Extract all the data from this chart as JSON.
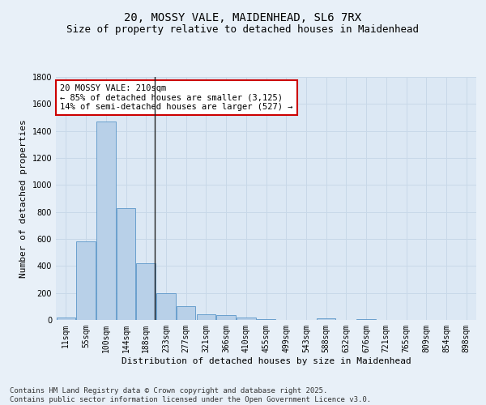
{
  "title_line1": "20, MOSSY VALE, MAIDENHEAD, SL6 7RX",
  "title_line2": "Size of property relative to detached houses in Maidenhead",
  "xlabel": "Distribution of detached houses by size in Maidenhead",
  "ylabel": "Number of detached properties",
  "categories": [
    "11sqm",
    "55sqm",
    "100sqm",
    "144sqm",
    "188sqm",
    "233sqm",
    "277sqm",
    "321sqm",
    "366sqm",
    "410sqm",
    "455sqm",
    "499sqm",
    "543sqm",
    "588sqm",
    "632sqm",
    "676sqm",
    "721sqm",
    "765sqm",
    "809sqm",
    "854sqm",
    "898sqm"
  ],
  "values": [
    20,
    585,
    1470,
    830,
    420,
    200,
    100,
    40,
    35,
    20,
    5,
    0,
    0,
    15,
    0,
    5,
    0,
    0,
    0,
    0,
    0
  ],
  "bar_color": "#b8d0e8",
  "bar_edge_color": "#5a96c8",
  "vline_color": "#222222",
  "vline_pos": 4.45,
  "annotation_text": "20 MOSSY VALE: 210sqm\n← 85% of detached houses are smaller (3,125)\n14% of semi-detached houses are larger (527) →",
  "annotation_box_color": "#ffffff",
  "annotation_box_edge": "#cc0000",
  "ylim": [
    0,
    1800
  ],
  "yticks": [
    0,
    200,
    400,
    600,
    800,
    1000,
    1200,
    1400,
    1600,
    1800
  ],
  "grid_color": "#c8d8e8",
  "bg_color": "#dce8f4",
  "fig_bg_color": "#e8f0f8",
  "footnote": "Contains HM Land Registry data © Crown copyright and database right 2025.\nContains public sector information licensed under the Open Government Licence v3.0.",
  "title_fontsize": 10,
  "subtitle_fontsize": 9,
  "axis_label_fontsize": 8,
  "tick_fontsize": 7,
  "annotation_fontsize": 7.5,
  "footnote_fontsize": 6.5
}
